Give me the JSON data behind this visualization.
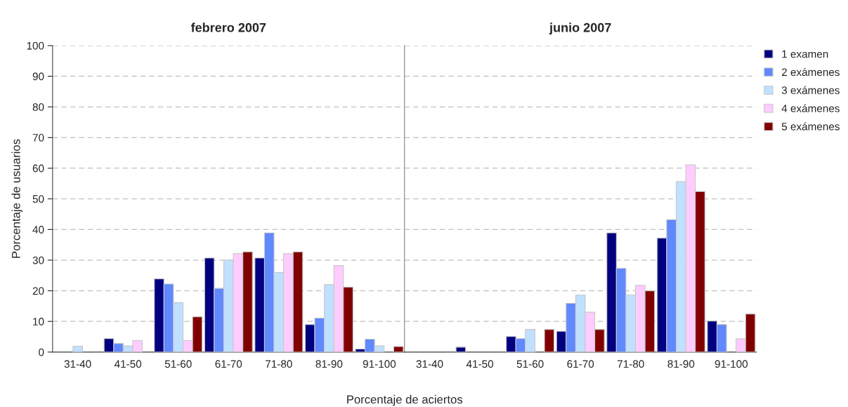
{
  "chart_data": [
    {
      "type": "bar",
      "title": "febrero 2007",
      "xlabel": "Porcentaje de aciertos",
      "ylabel": "Porcentaje de usuarios",
      "categories": [
        "31-40",
        "41-50",
        "51-60",
        "61-70",
        "71-80",
        "81-90",
        "91-100"
      ],
      "series": [
        {
          "color": "#000080",
          "values": [
            null,
            4.4,
            23.9,
            30.7,
            30.7,
            9.0,
            1.0
          ]
        },
        {
          "color": "#6088ff",
          "values": [
            null,
            2.8,
            22.2,
            20.8,
            38.9,
            11.1,
            4.2
          ]
        },
        {
          "color": "#c0e0ff",
          "values": [
            1.9,
            2.0,
            16.1,
            30.0,
            26.0,
            22.0,
            2.0
          ]
        },
        {
          "color": "#ffccff",
          "values": [
            null,
            3.8,
            3.8,
            32.1,
            32.1,
            28.2,
            null
          ]
        },
        {
          "color": "#800000",
          "values": [
            null,
            null,
            11.5,
            32.7,
            32.7,
            21.2,
            1.8
          ]
        }
      ],
      "ylim": [
        0,
        100
      ],
      "yticks": [
        0,
        10,
        20,
        30,
        40,
        50,
        60,
        70,
        80,
        90,
        100
      ],
      "grid": "y"
    },
    {
      "type": "bar",
      "title": "junio 2007",
      "categories": [
        "31-40",
        "41-50",
        "51-60",
        "61-70",
        "71-80",
        "81-90",
        "91-100"
      ],
      "series": [
        {
          "name": "1 examen",
          "color": "#000080",
          "values": [
            null,
            1.6,
            5.1,
            6.8,
            38.9,
            37.2,
            10.1
          ]
        },
        {
          "name": "2 exámenes",
          "color": "#6088ff",
          "values": [
            null,
            null,
            4.4,
            15.9,
            27.3,
            43.2,
            9.0
          ]
        },
        {
          "name": "3 exámenes",
          "color": "#c0e0ff",
          "values": [
            null,
            null,
            7.4,
            18.6,
            18.6,
            55.6,
            null
          ]
        },
        {
          "name": "4 exámenes",
          "color": "#ffccff",
          "values": [
            null,
            null,
            null,
            13.0,
            21.8,
            61.1,
            4.3
          ]
        },
        {
          "name": "5 exámenes",
          "color": "#800000",
          "values": [
            null,
            null,
            7.4,
            7.4,
            20.0,
            52.4,
            12.4
          ]
        }
      ],
      "ylim": [
        0,
        100
      ],
      "yticks": [
        0,
        10,
        20,
        30,
        40,
        50,
        60,
        70,
        80,
        90,
        100
      ],
      "grid": "y",
      "legend": "top right",
      "tick_labels": "x"
    }
  ]
}
